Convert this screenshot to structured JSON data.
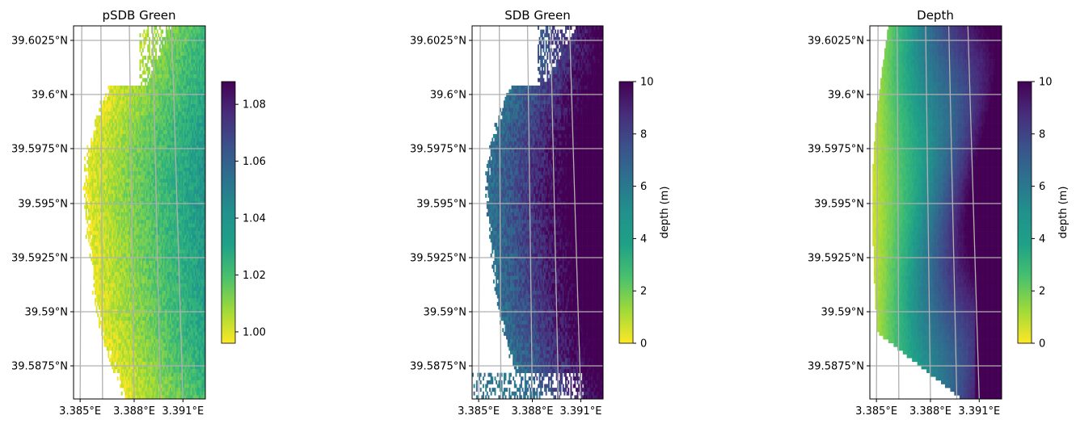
{
  "chart_data": [
    {
      "type": "heatmap",
      "title": "pSDB Green",
      "xlabel": "",
      "ylabel": "",
      "x_ticks": [
        "3.385°E",
        "3.388°E",
        "3.391°E"
      ],
      "y_ticks": [
        "39.6025°N",
        "39.6°N",
        "39.5975°N",
        "39.595°N",
        "39.5925°N",
        "39.59°N",
        "39.5875°N"
      ],
      "x_range": [
        3.3845,
        3.3927
      ],
      "y_range": [
        39.586,
        39.6033
      ],
      "grid": true,
      "colormap": "viridis_r",
      "colorbar": {
        "label": "",
        "range": [
          0.996,
          1.088
        ],
        "ticks": [
          "1.00",
          "1.02",
          "1.04",
          "1.06",
          "1.08"
        ]
      },
      "description_values": {
        "shore_value": 1.0,
        "offshore_value": 1.05
      }
    },
    {
      "type": "heatmap",
      "title": "SDB Green",
      "xlabel": "",
      "ylabel": "",
      "x_ticks": [
        "3.385°E",
        "3.388°E",
        "3.391°E"
      ],
      "y_ticks": [
        "39.6025°N",
        "39.6°N",
        "39.5975°N",
        "39.595°N",
        "39.5925°N",
        "39.59°N",
        "39.5875°N"
      ],
      "x_range": [
        3.3845,
        3.3927
      ],
      "y_range": [
        39.586,
        39.6033
      ],
      "grid": true,
      "colormap": "viridis_r",
      "colorbar": {
        "label": "depth (m)",
        "range": [
          0,
          10
        ],
        "ticks": [
          "0",
          "2",
          "4",
          "6",
          "8",
          "10"
        ]
      }
    },
    {
      "type": "heatmap",
      "title": "Depth",
      "xlabel": "",
      "ylabel": "",
      "x_ticks": [
        "3.385°E",
        "3.388°E",
        "3.391°E"
      ],
      "y_ticks": [
        "39.6025°N",
        "39.6°N",
        "39.5975°N",
        "39.595°N",
        "39.5925°N",
        "39.59°N",
        "39.5875°N"
      ],
      "x_range": [
        3.3845,
        3.3927
      ],
      "y_range": [
        39.586,
        39.6033
      ],
      "grid": true,
      "colormap": "viridis_r",
      "colorbar": {
        "label": "depth (m)",
        "range": [
          0,
          10
        ],
        "ticks": [
          "0",
          "2",
          "4",
          "6",
          "8",
          "10"
        ]
      }
    }
  ]
}
